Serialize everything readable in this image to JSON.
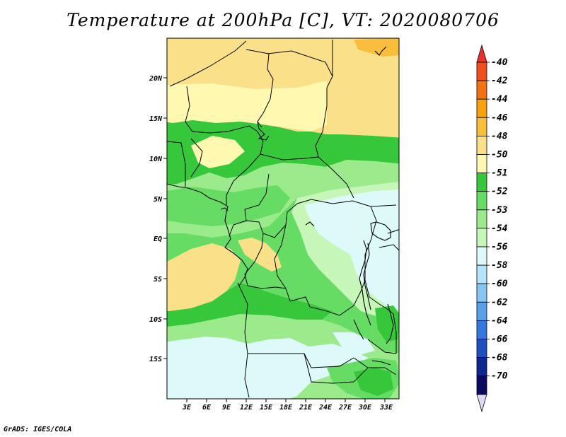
{
  "title": "Temperature at 200hPa [C], VT: 2020080706",
  "footer": "GrADS: IGES/COLA",
  "map": {
    "lon_labels": [
      "3E",
      "6E",
      "9E",
      "12E",
      "15E",
      "18E",
      "21E",
      "24E",
      "27E",
      "30E",
      "33E"
    ],
    "lat_labels": [
      "20N",
      "15N",
      "10N",
      "5N",
      "EQ",
      "5S",
      "10S",
      "15S"
    ]
  },
  "legend": {
    "labels": [
      "-40",
      "-42",
      "-44",
      "-46",
      "-48",
      "-50",
      "-51",
      "-52",
      "-53",
      "-54",
      "-56",
      "-58",
      "-60",
      "-62",
      "-64",
      "-66",
      "-68",
      "-70"
    ],
    "colors": {
      "arrow_top": "#e8322a",
      "boxes": [
        "#f0501e",
        "#f57214",
        "#f8a00e",
        "#f9bf3c",
        "#fbe08a",
        "#fff8b0",
        "#36c83a",
        "#66dc64",
        "#9bea8c",
        "#c6f6b8",
        "#def9fa",
        "#b4e6f8",
        "#86c6f0",
        "#5aa0e8",
        "#3478dc",
        "#1e50c0",
        "#0f2690",
        "#0a0a60"
      ],
      "arrow_bottom": "#dcdcf4"
    }
  }
}
